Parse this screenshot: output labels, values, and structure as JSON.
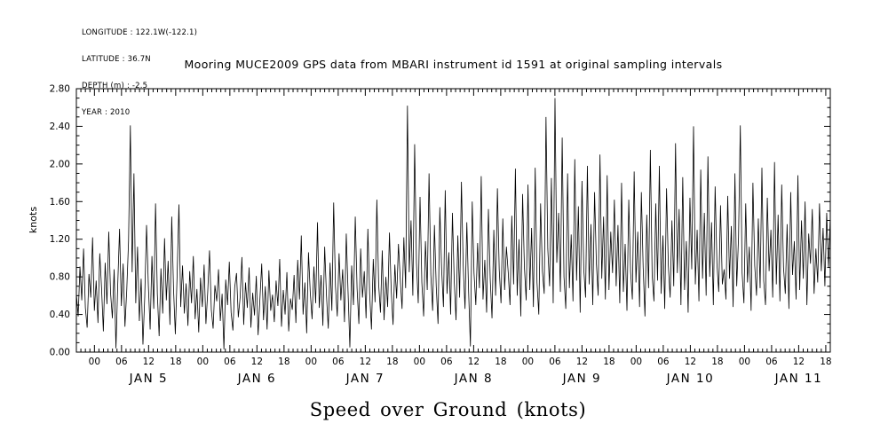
{
  "header": {
    "info_lines": [
      "LONGITUDE : 122.1W(-122.1)",
      "LATITUDE : 36.7N",
      "DEPTH (m) : -2.5",
      "YEAR : 2010"
    ]
  },
  "title": "Mooring MUCE2009 GPS data from MBARI instrument id 1591 at original sampling intervals",
  "footer_label": "Speed over Ground (knots)",
  "chart_data": {
    "type": "line",
    "title": "Mooring MUCE2009 GPS data from MBARI instrument id 1591 at original sampling intervals",
    "xlabel": "Speed over Ground (knots)",
    "ylabel": "knots",
    "ylim": [
      0.0,
      2.8
    ],
    "ytick_labels": [
      "0.00",
      "0.40",
      "0.80",
      "1.20",
      "1.60",
      "2.00",
      "2.40",
      "2.80"
    ],
    "ytick_values": [
      0.0,
      0.4,
      0.8,
      1.2,
      1.6,
      2.0,
      2.4,
      2.8
    ],
    "grid": false,
    "legend": "none",
    "line_color": "#000000",
    "background_color": "#ffffff",
    "x_axis": {
      "start": "2010-01-04 20:00",
      "end": "2010-01-11 19:00",
      "hours_total": 167,
      "first_midnight_offset_hours": 4,
      "major_tick_step_hours": 6,
      "minor_tick_step_hours": 1,
      "hour_labels": [
        "00",
        "06",
        "12",
        "18"
      ],
      "day_labels": [
        "JAN 5",
        "JAN 6",
        "JAN 7",
        "JAN 8",
        "JAN 9",
        "JAN 10",
        "JAN 11"
      ]
    },
    "series": [
      {
        "name": "speed-over-ground",
        "units": "knots",
        "values": [
          0.62,
          0.38,
          0.91,
          0.55,
          1.1,
          0.47,
          0.26,
          0.83,
          0.58,
          1.22,
          0.44,
          0.76,
          0.31,
          1.05,
          0.68,
          0.22,
          0.95,
          0.51,
          1.28,
          0.63,
          0.36,
          0.88,
          0.04,
          0.72,
          1.31,
          0.49,
          0.94,
          0.27,
          0.66,
          1.18,
          2.41,
          0.85,
          1.9,
          0.52,
          1.12,
          0.33,
          0.78,
          0.08,
          0.59,
          1.35,
          0.71,
          0.24,
          1.02,
          0.46,
          1.58,
          0.62,
          0.17,
          0.89,
          0.41,
          1.21,
          0.55,
          0.97,
          0.29,
          1.44,
          0.67,
          0.19,
          0.82,
          1.57,
          0.48,
          0.92,
          0.41,
          0.73,
          0.28,
          0.86,
          0.52,
          1.02,
          0.35,
          0.67,
          0.21,
          0.79,
          0.48,
          0.93,
          0.3,
          0.64,
          1.08,
          0.45,
          0.25,
          0.71,
          0.54,
          0.88,
          0.33,
          0.62,
          0.03,
          0.77,
          0.5,
          0.96,
          0.42,
          0.23,
          0.69,
          0.84,
          0.37,
          0.58,
          1.01,
          0.29,
          0.74,
          0.47,
          0.9,
          0.26,
          0.63,
          0.39,
          0.81,
          0.18,
          0.56,
          0.94,
          0.34,
          0.7,
          0.24,
          0.87,
          0.44,
          0.61,
          0.32,
          0.76,
          0.49,
          0.99,
          0.27,
          0.66,
          0.4,
          0.85,
          0.22,
          0.57,
          0.45,
          0.82,
          0.31,
          0.98,
          0.56,
          1.24,
          0.4,
          0.74,
          0.2,
          1.06,
          0.63,
          0.35,
          0.91,
          0.52,
          1.38,
          0.47,
          0.82,
          0.28,
          1.12,
          0.6,
          0.25,
          0.95,
          0.44,
          1.59,
          0.7,
          0.38,
          1.05,
          0.55,
          0.88,
          0.32,
          1.26,
          0.64,
          0.05,
          0.92,
          0.5,
          1.44,
          0.68,
          0.3,
          1.1,
          0.58,
          0.86,
          0.36,
          1.31,
          0.62,
          0.24,
          0.99,
          0.53,
          1.62,
          0.72,
          0.42,
          1.08,
          0.34,
          0.8,
          0.48,
          1.27,
          0.65,
          0.29,
          0.93,
          0.57,
          1.15,
          0.78,
          0.46,
          1.22,
          0.68,
          2.62,
          0.85,
          1.4,
          0.6,
          2.21,
          0.95,
          0.52,
          1.65,
          0.74,
          0.38,
          1.18,
          0.66,
          1.9,
          0.82,
          0.44,
          1.35,
          0.7,
          0.3,
          1.54,
          0.88,
          0.48,
          1.72,
          0.62,
          1.06,
          0.4,
          1.48,
          0.76,
          0.34,
          1.24,
          0.58,
          1.81,
          0.92,
          0.46,
          1.38,
          0.64,
          0.06,
          1.6,
          0.84,
          0.5,
          1.16,
          0.68,
          1.87,
          0.56,
          0.98,
          0.42,
          1.52,
          0.78,
          0.36,
          1.3,
          0.6,
          1.74,
          0.88,
          0.52,
          1.42,
          0.66,
          1.12,
          0.85,
          0.5,
          1.45,
          0.72,
          1.95,
          0.6,
          1.2,
          0.38,
          1.68,
          0.9,
          0.55,
          1.78,
          0.66,
          1.32,
          0.48,
          1.96,
          0.74,
          0.4,
          1.58,
          0.86,
          0.62,
          2.5,
          1.1,
          0.7,
          1.85,
          0.52,
          2.7,
          0.95,
          1.48,
          0.64,
          2.28,
          0.8,
          0.46,
          1.9,
          0.68,
          1.25,
          0.54,
          2.05,
          0.76,
          1.55,
          0.42,
          1.82,
          0.88,
          0.58,
          1.98,
          0.72,
          1.36,
          0.5,
          1.7,
          0.94,
          0.6,
          2.1,
          0.78,
          1.44,
          0.56,
          1.88,
          0.66,
          1.28,
          0.84,
          1.62,
          0.7,
          1.35,
          0.52,
          1.8,
          0.64,
          1.15,
          0.44,
          1.62,
          0.86,
          0.56,
          1.92,
          0.74,
          1.28,
          0.48,
          1.7,
          0.9,
          0.38,
          1.46,
          0.68,
          2.15,
          0.82,
          0.54,
          1.58,
          0.76,
          1.98,
          0.62,
          1.24,
          0.46,
          1.74,
          0.92,
          0.58,
          1.4,
          0.7,
          2.22,
          0.84,
          1.52,
          0.5,
          1.86,
          0.66,
          1.18,
          0.42,
          1.64,
          0.88,
          2.4,
          0.72,
          1.3,
          0.54,
          1.94,
          0.78,
          1.48,
          0.6,
          2.08,
          0.8,
          1.38,
          0.5,
          1.76,
          0.94,
          0.64,
          1.56,
          0.72,
          0.88,
          0.56,
          1.66,
          0.78,
          1.34,
          0.48,
          1.9,
          0.7,
          1.22,
          2.41,
          0.84,
          0.52,
          1.58,
          0.74,
          1.12,
          0.44,
          1.8,
          0.92,
          0.6,
          1.42,
          0.68,
          1.96,
          0.76,
          0.5,
          1.64,
          0.86,
          1.3,
          0.58,
          2.02,
          0.72,
          1.46,
          0.54,
          1.78,
          0.9,
          0.62,
          1.36,
          0.46,
          1.7,
          0.82,
          1.18,
          0.56,
          1.88,
          0.66,
          1.4,
          0.78,
          1.6,
          0.5,
          1.26,
          0.94,
          1.52,
          0.62,
          1.1,
          0.74,
          1.58,
          0.86,
          1.32,
          0.7,
          1.48,
          0.9,
          1.44
        ]
      }
    ]
  }
}
